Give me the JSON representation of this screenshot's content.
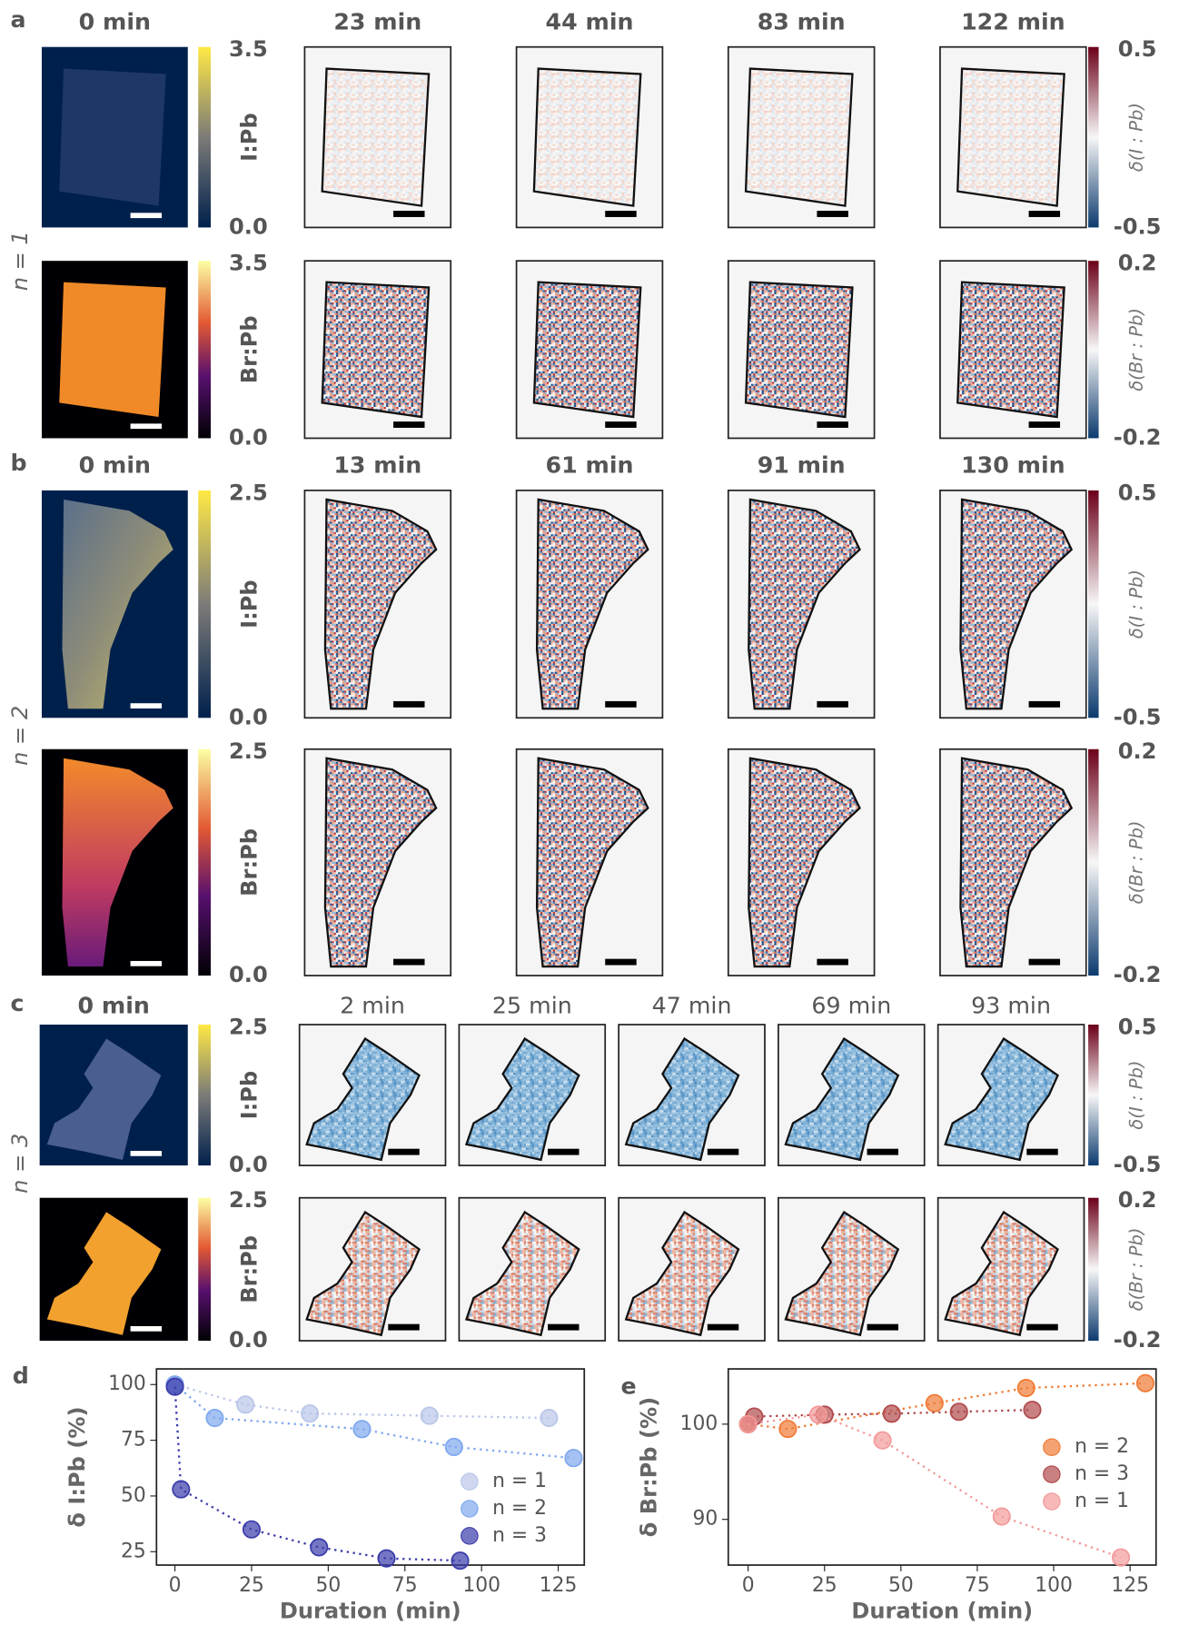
{
  "rows": [
    {
      "panel": "a",
      "n_label": "n = 1",
      "times": [
        "0 min",
        "23 min",
        "44 min",
        "83 min",
        "122 min"
      ],
      "maps": [
        {
          "label": "I:Pb",
          "ticks": [
            "3.5",
            "0.0"
          ],
          "delta_label": "δ(I : Pb)",
          "delta_ticks": [
            "0.5",
            "-0.5"
          ]
        },
        {
          "label": "Br:Pb",
          "ticks": [
            "3.5",
            "0.0"
          ],
          "delta_label": "δ(Br : Pb)",
          "delta_ticks": [
            "0.2",
            "-0.2"
          ]
        }
      ]
    },
    {
      "panel": "b",
      "n_label": "n = 2",
      "times": [
        "0 min",
        "13 min",
        "61 min",
        "91 min",
        "130 min"
      ],
      "maps": [
        {
          "label": "I:Pb",
          "ticks": [
            "2.5",
            "0.0"
          ],
          "delta_label": "δ(I : Pb)",
          "delta_ticks": [
            "0.5",
            "-0.5"
          ]
        },
        {
          "label": "Br:Pb",
          "ticks": [
            "2.5",
            "0.0"
          ],
          "delta_label": "δ(Br : Pb)",
          "delta_ticks": [
            "0.2",
            "-0.2"
          ]
        }
      ]
    },
    {
      "panel": "c",
      "n_label": "n = 3",
      "times": [
        "0 min",
        "2 min",
        "25 min",
        "47 min",
        "69 min",
        "93 min"
      ],
      "maps": [
        {
          "label": "I:Pb",
          "ticks": [
            "2.5",
            "0.0"
          ],
          "delta_label": "δ(I : Pb)",
          "delta_ticks": [
            "0.5",
            "-0.5"
          ]
        },
        {
          "label": "Br:Pb",
          "ticks": [
            "2.5",
            "0.0"
          ],
          "delta_label": "δ(Br : Pb)",
          "delta_ticks": [
            "0.2",
            "-0.2"
          ]
        }
      ]
    }
  ],
  "chart_data": [
    {
      "type": "line",
      "panel": "d",
      "x_label": "Duration (min)",
      "y_label": "δ I:Pb (%)",
      "xlim": [
        -6,
        133.5
      ],
      "ylim": [
        19,
        107
      ],
      "xticks": [
        0,
        25,
        50,
        75,
        100,
        125
      ],
      "yticks": [
        25,
        50,
        75,
        100
      ],
      "legend": "lower right",
      "series": [
        {
          "name": "n = 1",
          "color": "#b9c6e8",
          "x": [
            0,
            23,
            44,
            83,
            122
          ],
          "values": [
            100,
            91,
            87,
            86,
            85
          ]
        },
        {
          "name": "n = 2",
          "color": "#7fa8ee",
          "x": [
            0,
            13,
            61,
            91,
            130
          ],
          "values": [
            100,
            85,
            80,
            72,
            67
          ]
        },
        {
          "name": "n = 3",
          "color": "#3b3caa",
          "x": [
            0,
            2,
            25,
            47,
            69,
            93
          ],
          "values": [
            99,
            53,
            35,
            27,
            22,
            21
          ]
        }
      ]
    },
    {
      "type": "line",
      "panel": "e",
      "x_label": "Duration (min)",
      "y_label": "δ Br:Pb (%)",
      "xlim": [
        -6.5,
        133.5
      ],
      "ylim": [
        85.2,
        105.8
      ],
      "xticks": [
        0,
        25,
        50,
        75,
        100,
        125
      ],
      "yticks": [
        90,
        100
      ],
      "legend": "center right",
      "series": [
        {
          "name": "n = 2",
          "color": "#f07a35",
          "x": [
            0,
            13,
            61,
            91,
            130
          ],
          "values": [
            100,
            99.5,
            102.2,
            103.8,
            104.3
          ]
        },
        {
          "name": "n = 3",
          "color": "#b04a4c",
          "x": [
            0,
            2,
            25,
            47,
            69,
            93
          ],
          "values": [
            100,
            100.8,
            101,
            101.1,
            101.3,
            101.5
          ]
        },
        {
          "name": "n = 1",
          "color": "#f39a9a",
          "x": [
            0,
            23,
            44,
            83,
            122
          ],
          "values": [
            100,
            101,
            98.3,
            90.3,
            86
          ]
        }
      ]
    }
  ]
}
